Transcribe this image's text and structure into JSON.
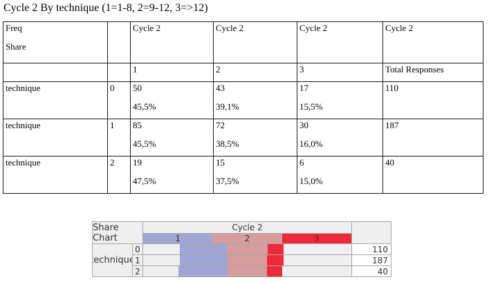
{
  "title": "Cycle 2 By technique (1=1-8, 2=9-12, 3=>12)",
  "table": {
    "corner_line1": "Freq",
    "corner_line2": "Share",
    "group_header": "Cycle 2",
    "sub_headers": [
      "1",
      "2",
      "3",
      "Total Responses"
    ],
    "rows": [
      {
        "label": "technique",
        "code": "0",
        "cells": [
          {
            "count": "50",
            "share": "45,5%"
          },
          {
            "count": "43",
            "share": "39,1%"
          },
          {
            "count": "17",
            "share": "15,5%"
          }
        ],
        "total": "110"
      },
      {
        "label": "technique",
        "code": "1",
        "cells": [
          {
            "count": "85",
            "share": "45,5%"
          },
          {
            "count": "72",
            "share": "38,5%"
          },
          {
            "count": "30",
            "share": "16,0%"
          }
        ],
        "total": "187"
      },
      {
        "label": "technique",
        "code": "2",
        "cells": [
          {
            "count": "19",
            "share": "47,5%"
          },
          {
            "count": "15",
            "share": "37,5%"
          },
          {
            "count": "6",
            "share": "15,0%"
          }
        ],
        "total": "40"
      }
    ]
  },
  "chart_data": {
    "type": "bar",
    "variant": "centered-stacked-share",
    "title_label": "Share Chart",
    "group_header": "Cycle 2",
    "row_group_label": "technique",
    "categories": [
      "1",
      "2",
      "3"
    ],
    "row_labels": [
      "0",
      "1",
      "2"
    ],
    "series": [
      {
        "name": "1",
        "values": [
          45.5,
          45.5,
          47.5
        ]
      },
      {
        "name": "2",
        "values": [
          39.1,
          38.5,
          37.5
        ]
      },
      {
        "name": "3",
        "values": [
          15.5,
          16.0,
          15.0
        ]
      }
    ],
    "totals": [
      110,
      187,
      40
    ],
    "colors": [
      "#9fa6d3",
      "#d79c9e",
      "#ee2939"
    ],
    "legend_position": "top",
    "unit": "percent of row total"
  }
}
